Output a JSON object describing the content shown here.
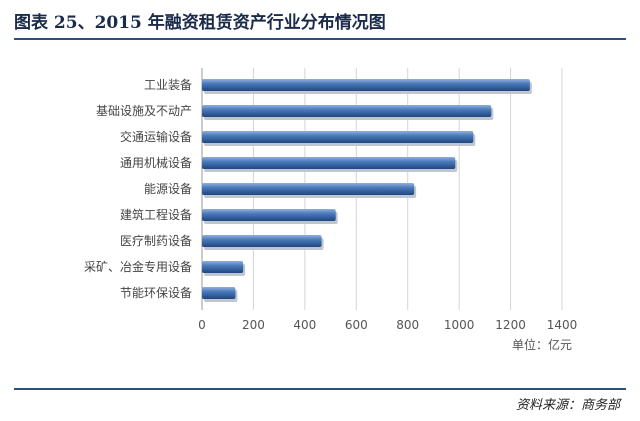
{
  "header": {
    "title": "图表 25、2015 年融资租赁资产行业分布情况图"
  },
  "footer": {
    "source": "资料来源：商务部"
  },
  "chart_data": {
    "type": "bar",
    "orientation": "horizontal",
    "categories": [
      "工业装备",
      "基础设施及不动产",
      "交通运输设备",
      "通用机械设备",
      "能源设备",
      "建筑工程设备",
      "医疗制药设备",
      "采矿、冶金专用设备",
      "节能环保设备"
    ],
    "values": [
      1275,
      1125,
      1055,
      985,
      825,
      520,
      465,
      160,
      130
    ],
    "xlim": [
      0,
      1400
    ],
    "xticks": [
      0,
      200,
      400,
      600,
      800,
      1000,
      1200,
      1400
    ],
    "unit_label": "单位：亿元",
    "grid": "vertical",
    "bar_color": "#2f5f9f"
  }
}
